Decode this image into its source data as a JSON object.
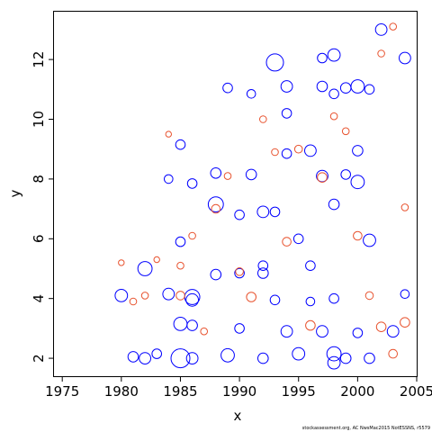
{
  "colors": {
    "blue": "#0000ff",
    "red": "#e8532f",
    "axis": "#000000"
  },
  "credit": "stockassessment.org, AC NwsMac2015 NotESSNS, r5579",
  "chart_data": {
    "type": "scatter",
    "title": "",
    "xlabel": "x",
    "ylabel": "y",
    "xlim": [
      1974.3,
      2005
    ],
    "ylim": [
      1.4,
      13.6
    ],
    "xticks": [
      1975,
      1980,
      1985,
      1990,
      1995,
      2000,
      2005
    ],
    "yticks": [
      2,
      4,
      6,
      8,
      10,
      12
    ],
    "grid": false,
    "legend": "none",
    "note": "bubble residual plot: blue open circles = positive residuals, red = negative residuals; marker size scales with |residual|",
    "series": [
      {
        "color": "blue",
        "points": [
          [
            1980,
            4.1,
            0.9
          ],
          [
            1981,
            2.05,
            0.7
          ],
          [
            1982,
            2,
            0.8
          ],
          [
            1982,
            5,
            1.1
          ],
          [
            1983,
            2.15,
            0.6
          ],
          [
            1984,
            4.15,
            0.8
          ],
          [
            1984,
            8,
            0.5
          ],
          [
            1985,
            2,
            1.6
          ],
          [
            1985,
            3.15,
            1.0
          ],
          [
            1985,
            5.9,
            0.6
          ],
          [
            1985,
            9.15,
            0.6
          ],
          [
            1986,
            4.05,
            1.2
          ],
          [
            1986,
            3.95,
            0.9
          ],
          [
            1986,
            2,
            0.8
          ],
          [
            1986,
            7.85,
            0.6
          ],
          [
            1986,
            3.1,
            0.7
          ],
          [
            1988,
            7.15,
            1.2
          ],
          [
            1988,
            8.2,
            0.7
          ],
          [
            1988,
            4.8,
            0.7
          ],
          [
            1989,
            2.1,
            1.0
          ],
          [
            1989,
            11.05,
            0.6
          ],
          [
            1990,
            6.8,
            0.6
          ],
          [
            1990,
            3,
            0.6
          ],
          [
            1990,
            4.85,
            0.6
          ],
          [
            1991,
            8.15,
            0.7
          ],
          [
            1991,
            10.85,
            0.5
          ],
          [
            1992,
            2,
            0.7
          ],
          [
            1992,
            4.85,
            0.7
          ],
          [
            1992,
            6.9,
            0.8
          ],
          [
            1992,
            5.1,
            0.6
          ],
          [
            1993,
            11.9,
            1.4
          ],
          [
            1993,
            3.95,
            0.6
          ],
          [
            1993,
            6.9,
            0.6
          ],
          [
            1994,
            11.1,
            0.8
          ],
          [
            1994,
            2.9,
            0.8
          ],
          [
            1994,
            10.2,
            0.6
          ],
          [
            1994,
            8.85,
            0.6
          ],
          [
            1995,
            2.15,
            0.9
          ],
          [
            1995,
            6,
            0.6
          ],
          [
            1996,
            8.95,
            0.8
          ],
          [
            1996,
            5.1,
            0.6
          ],
          [
            1996,
            3.9,
            0.5
          ],
          [
            1997,
            12.05,
            0.6
          ],
          [
            1997,
            11.1,
            0.7
          ],
          [
            1997,
            8.1,
            0.8
          ],
          [
            1997,
            2.9,
            0.8
          ],
          [
            1998,
            12.15,
            0.9
          ],
          [
            1998,
            2.15,
            1.1
          ],
          [
            1998,
            1.85,
            0.9
          ],
          [
            1998,
            7.15,
            0.7
          ],
          [
            1998,
            10.85,
            0.6
          ],
          [
            1998,
            4,
            0.6
          ],
          [
            1999,
            11.05,
            0.7
          ],
          [
            1999,
            8.15,
            0.6
          ],
          [
            1999,
            2,
            0.7
          ],
          [
            2000,
            11.1,
            1.0
          ],
          [
            2000,
            7.9,
            1.0
          ],
          [
            2000,
            8.95,
            0.7
          ],
          [
            2000,
            2.85,
            0.6
          ],
          [
            2001,
            5.95,
            0.9
          ],
          [
            2001,
            11,
            0.6
          ],
          [
            2001,
            2,
            0.7
          ],
          [
            2002,
            13,
            0.8
          ],
          [
            2003,
            2.9,
            0.8
          ],
          [
            2004,
            12.05,
            0.8
          ],
          [
            2004,
            4.15,
            0.5
          ]
        ]
      },
      {
        "color": "red",
        "points": [
          [
            1980,
            5.2,
            0.2
          ],
          [
            1981,
            3.9,
            0.3
          ],
          [
            1982,
            4.1,
            0.3
          ],
          [
            1983,
            5.3,
            0.2
          ],
          [
            1984,
            9.5,
            0.2
          ],
          [
            1985,
            4.1,
            0.5
          ],
          [
            1985,
            5.1,
            0.3
          ],
          [
            1986,
            6.1,
            0.3
          ],
          [
            1987,
            2.9,
            0.3
          ],
          [
            1988,
            7,
            0.5
          ],
          [
            1989,
            8.1,
            0.3
          ],
          [
            1990,
            4.9,
            0.4
          ],
          [
            1991,
            4.05,
            0.6
          ],
          [
            1992,
            10,
            0.3
          ],
          [
            1993,
            8.9,
            0.3
          ],
          [
            1994,
            5.9,
            0.5
          ],
          [
            1995,
            9,
            0.4
          ],
          [
            1996,
            3.1,
            0.6
          ],
          [
            1997,
            8.05,
            0.6
          ],
          [
            1998,
            10.1,
            0.3
          ],
          [
            1999,
            9.6,
            0.3
          ],
          [
            2000,
            6.1,
            0.5
          ],
          [
            2001,
            4.1,
            0.4
          ],
          [
            2002,
            3.05,
            0.6
          ],
          [
            2002,
            12.2,
            0.3
          ],
          [
            2003,
            13.1,
            0.3
          ],
          [
            2003,
            2.15,
            0.5
          ],
          [
            2004,
            3.2,
            0.6
          ],
          [
            2004,
            7.05,
            0.3
          ]
        ]
      }
    ]
  }
}
